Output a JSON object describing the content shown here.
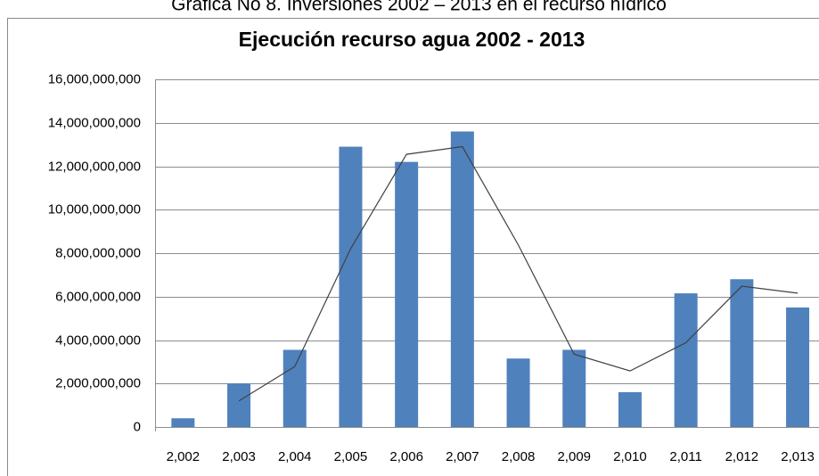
{
  "caption": "Gráfica No 8. Inversiones 2002 – 2013 en el recurso hídrico",
  "chart_data": {
    "type": "bar",
    "title": "Ejecución recurso agua 2002 - 2013",
    "categories": [
      "2,002",
      "2,003",
      "2,004",
      "2,005",
      "2,006",
      "2,007",
      "2,008",
      "2,009",
      "2,010",
      "2,011",
      "2,012",
      "2,013"
    ],
    "series": [
      {
        "type": "bar",
        "color": "#4f81bd",
        "values": [
          400000000,
          2000000000,
          3550000000,
          12900000000,
          12200000000,
          13600000000,
          3150000000,
          3550000000,
          1600000000,
          6150000000,
          6800000000,
          5500000000
        ]
      },
      {
        "type": "line",
        "color": "#404040",
        "values": [
          null,
          1200000000,
          2780000000,
          8200000000,
          12550000000,
          12900000000,
          8380000000,
          3350000000,
          2580000000,
          3880000000,
          6480000000,
          6160000000
        ]
      }
    ],
    "ylim": [
      0,
      16000000000
    ],
    "yticks": [
      0,
      {
        "value": 2000000000,
        "label": "2,000,000,000"
      },
      {
        "value": 4000000000,
        "label": "4,000,000,000"
      },
      {
        "value": 6000000000,
        "label": "6,000,000,000"
      },
      {
        "value": 8000000000,
        "label": "8,000,000,000"
      },
      {
        "value": 10000000000,
        "label": "10,000,000,000"
      },
      {
        "value": 12000000000,
        "label": "12,000,000,000"
      },
      {
        "value": 14000000000,
        "label": "14,000,000,000"
      },
      {
        "value": 16000000000,
        "label": "16,000,000,000"
      }
    ],
    "grid": true
  }
}
